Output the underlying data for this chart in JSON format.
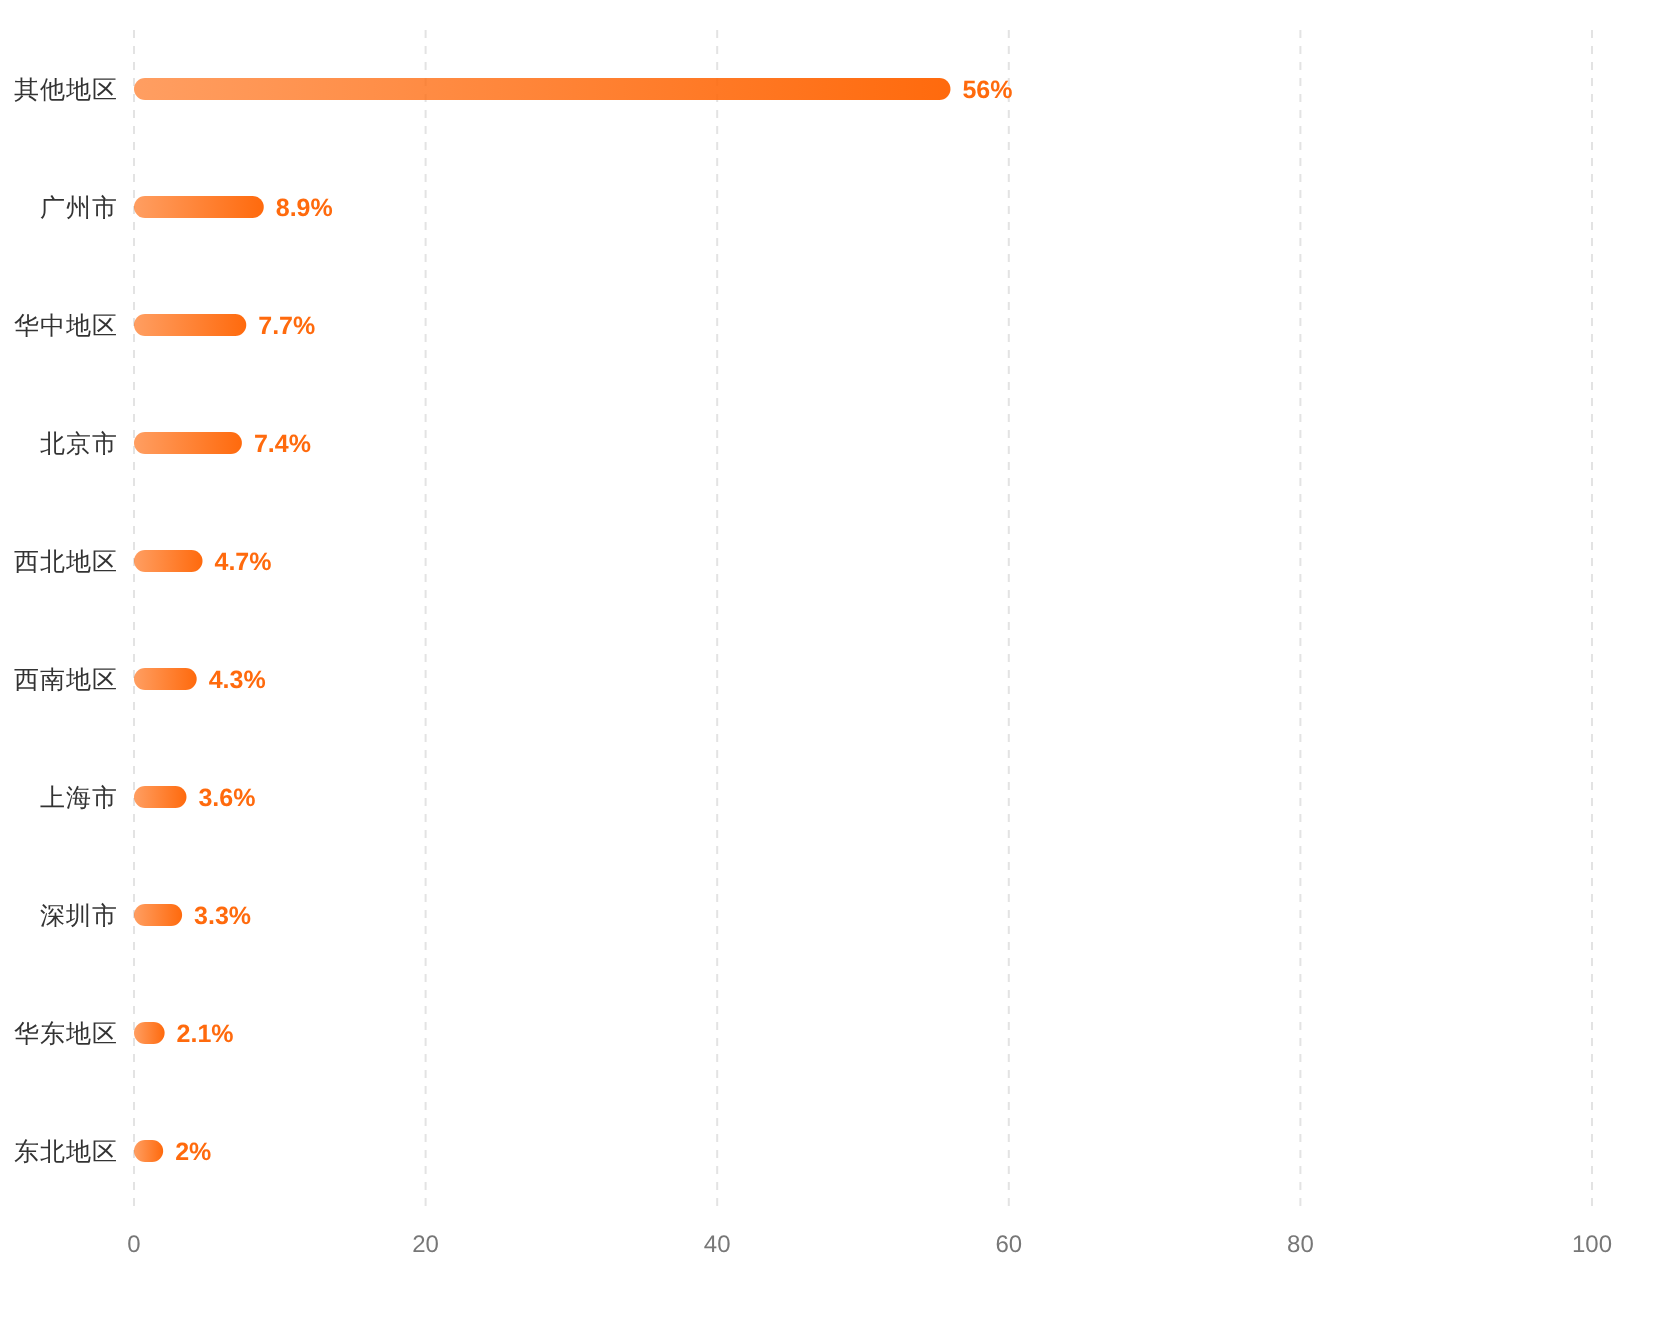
{
  "chart_data": {
    "type": "bar",
    "orientation": "horizontal",
    "categories": [
      "其他地区",
      "广州市",
      "华中地区",
      "北京市",
      "西北地区",
      "西南地区",
      "上海市",
      "深圳市",
      "华东地区",
      "东北地区"
    ],
    "values": [
      56,
      8.9,
      7.7,
      7.4,
      4.7,
      4.3,
      3.6,
      3.3,
      2.1,
      2
    ],
    "value_labels": [
      "56%",
      "8.9%",
      "7.7%",
      "7.4%",
      "4.7%",
      "4.3%",
      "3.6%",
      "3.3%",
      "2.1%",
      "2%"
    ],
    "color": "#ff6a0d",
    "xlim": [
      0,
      100
    ],
    "xticks": [
      0,
      20,
      40,
      60,
      80,
      100
    ],
    "grid": "x"
  }
}
